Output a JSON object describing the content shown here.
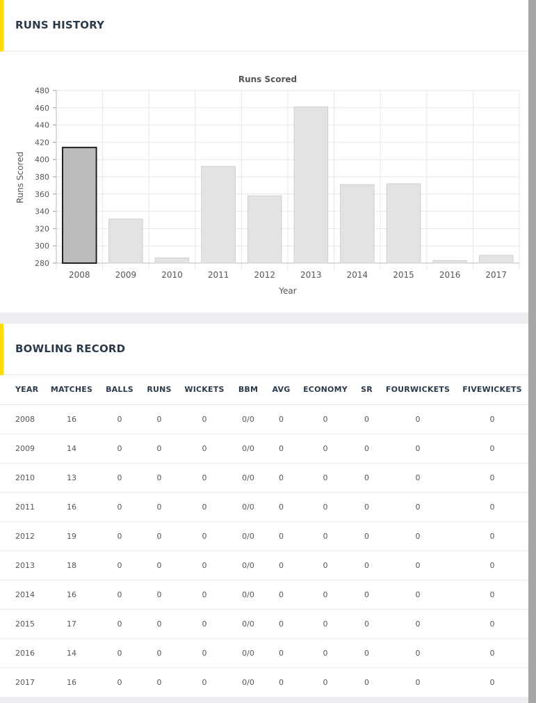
{
  "colors": {
    "accent": "#ffdd00",
    "bar_fill": "#e3e3e3",
    "bar_highlight": "#bbbbbb"
  },
  "runs_history": {
    "title": "RUNS HISTORY",
    "chart_data": {
      "type": "bar",
      "title": "Runs Scored",
      "xlabel": "Year",
      "ylabel": "Runs Scored",
      "categories": [
        "2008",
        "2009",
        "2010",
        "2011",
        "2012",
        "2013",
        "2014",
        "2015",
        "2016",
        "2017"
      ],
      "values": [
        414,
        331,
        286,
        392,
        358,
        461,
        371,
        372,
        283,
        289
      ],
      "ylim": [
        280,
        480
      ],
      "yticks": [
        280,
        300,
        320,
        340,
        360,
        380,
        400,
        420,
        440,
        460,
        480
      ],
      "highlighted_category": "2008",
      "grid": true
    }
  },
  "bowling_record": {
    "title": "BOWLING RECORD",
    "columns": [
      "YEAR",
      "MATCHES",
      "BALLS",
      "RUNS",
      "WICKETS",
      "BBM",
      "AVG",
      "ECONOMY",
      "SR",
      "FOURWICKETS",
      "FIVEWICKETS"
    ],
    "rows": [
      [
        "2008",
        "16",
        "0",
        "0",
        "0",
        "0/0",
        "0",
        "0",
        "0",
        "0",
        "0"
      ],
      [
        "2009",
        "14",
        "0",
        "0",
        "0",
        "0/0",
        "0",
        "0",
        "0",
        "0",
        "0"
      ],
      [
        "2010",
        "13",
        "0",
        "0",
        "0",
        "0/0",
        "0",
        "0",
        "0",
        "0",
        "0"
      ],
      [
        "2011",
        "16",
        "0",
        "0",
        "0",
        "0/0",
        "0",
        "0",
        "0",
        "0",
        "0"
      ],
      [
        "2012",
        "19",
        "0",
        "0",
        "0",
        "0/0",
        "0",
        "0",
        "0",
        "0",
        "0"
      ],
      [
        "2013",
        "18",
        "0",
        "0",
        "0",
        "0/0",
        "0",
        "0",
        "0",
        "0",
        "0"
      ],
      [
        "2014",
        "16",
        "0",
        "0",
        "0",
        "0/0",
        "0",
        "0",
        "0",
        "0",
        "0"
      ],
      [
        "2015",
        "17",
        "0",
        "0",
        "0",
        "0/0",
        "0",
        "0",
        "0",
        "0",
        "0"
      ],
      [
        "2016",
        "14",
        "0",
        "0",
        "0",
        "0/0",
        "0",
        "0",
        "0",
        "0",
        "0"
      ],
      [
        "2017",
        "16",
        "0",
        "0",
        "0",
        "0/0",
        "0",
        "0",
        "0",
        "0",
        "0"
      ]
    ]
  }
}
